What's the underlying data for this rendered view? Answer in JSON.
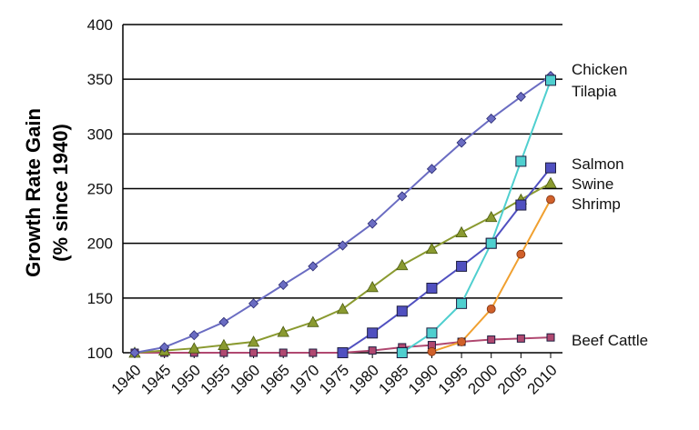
{
  "chart_data": {
    "type": "line",
    "title": "",
    "xlabel": "",
    "ylabel": [
      "Growth Rate Gain",
      "(% since 1940)"
    ],
    "ylim": [
      100,
      400
    ],
    "yticks": [
      "100",
      "150",
      "200",
      "250",
      "300",
      "350",
      "400"
    ],
    "grid": "horizontal",
    "legend": "right",
    "x": [
      "1940",
      "1945",
      "1950",
      "1955",
      "1960",
      "1965",
      "1970",
      "1975",
      "1980",
      "1985",
      "1990",
      "1995",
      "2000",
      "2005",
      "2010"
    ],
    "series": [
      {
        "name": "Chicken",
        "color": "#6a6cc2",
        "marker": "diamond",
        "values": [
          100,
          105,
          116,
          128,
          145,
          162,
          179,
          198,
          218,
          243,
          268,
          292,
          314,
          334,
          353
        ]
      },
      {
        "name": "Tilapia",
        "color": "#4fcfcf",
        "marker": "square",
        "values": [
          null,
          null,
          null,
          null,
          null,
          null,
          null,
          null,
          null,
          100,
          118,
          145,
          200,
          275,
          349
        ]
      },
      {
        "name": "Salmon",
        "color": "#5050c0",
        "marker": "square",
        "values": [
          null,
          null,
          null,
          null,
          null,
          null,
          null,
          100,
          118,
          138,
          159,
          179,
          200,
          235,
          269
        ]
      },
      {
        "name": "Swine",
        "color": "#8a9a30",
        "marker": "triangle",
        "values": [
          100,
          102,
          104,
          107,
          110,
          119,
          128,
          140,
          160,
          180,
          195,
          210,
          224,
          240,
          255
        ]
      },
      {
        "name": "Shrimp",
        "color": "#f0a030",
        "marker": "circle",
        "values": [
          null,
          null,
          null,
          null,
          null,
          null,
          null,
          null,
          null,
          null,
          101,
          110,
          140,
          190,
          240
        ]
      },
      {
        "name": "Beef Cattle",
        "color": "#b04870",
        "marker": "square",
        "values": [
          100,
          100,
          100,
          100,
          100,
          100,
          100,
          100,
          102,
          105,
          107,
          110,
          112,
          113,
          114
        ]
      }
    ]
  }
}
